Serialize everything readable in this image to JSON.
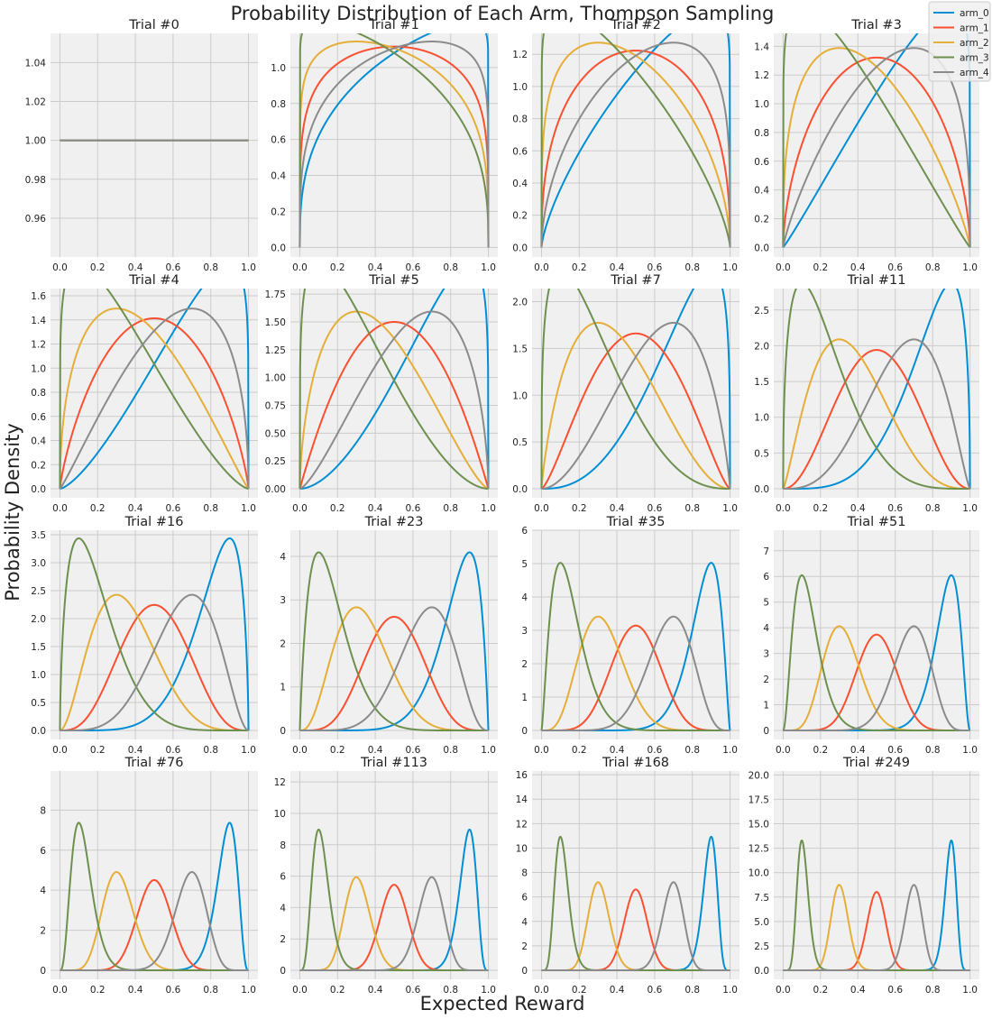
{
  "chart_data": {
    "type": "line",
    "title": "Probability Distribution of Each Arm, Thompson Sampling",
    "xlabel": "Expected Reward",
    "ylabel": "Probability Density",
    "grid": true,
    "legend_placement": "top-right",
    "xlim": [
      0,
      1
    ],
    "xticks": [
      "0.0",
      "0.2",
      "0.4",
      "0.6",
      "0.8",
      "1.0"
    ],
    "series_colors": [
      "#008fd5",
      "#fc4f30",
      "#e5ae38",
      "#6d904f",
      "#8b8b8b"
    ],
    "series": [
      {
        "name": "arm_0"
      },
      {
        "name": "arm_1"
      },
      {
        "name": "arm_2"
      },
      {
        "name": "arm_3"
      },
      {
        "name": "arm_4"
      }
    ],
    "panels": [
      {
        "title": "Trial #0",
        "ylim": [
          0.945,
          1.055
        ],
        "yticks": [
          "0.96",
          "0.98",
          "1.00",
          "1.02",
          "1.04"
        ],
        "params": [
          [
            1,
            1
          ],
          [
            1,
            1
          ],
          [
            1,
            1
          ],
          [
            1,
            1
          ],
          [
            1,
            1
          ]
        ]
      },
      {
        "title": "Trial #1",
        "ylim": [
          0,
          1.19
        ],
        "yticks": [
          "0.0",
          "0.2",
          "0.4",
          "0.6",
          "0.8",
          "1.0"
        ],
        "params": [
          [
            1.36,
            1.04
          ],
          [
            1.2,
            1.2
          ],
          [
            1.12,
            1.28
          ],
          [
            1.04,
            1.36
          ],
          [
            1.28,
            1.12
          ]
        ]
      },
      {
        "title": "Trial #2",
        "ylim": [
          0,
          1.33
        ],
        "yticks": [
          "0.0",
          "0.2",
          "0.4",
          "0.6",
          "0.8",
          "1.0",
          "1.2"
        ],
        "params": [
          [
            1.72,
            1.08
          ],
          [
            1.4,
            1.4
          ],
          [
            1.24,
            1.56
          ],
          [
            1.08,
            1.72
          ],
          [
            1.56,
            1.24
          ]
        ]
      },
      {
        "title": "Trial #3",
        "ylim": [
          0,
          1.49
        ],
        "yticks": [
          "0.0",
          "0.2",
          "0.4",
          "0.6",
          "0.8",
          "1.0",
          "1.2",
          "1.4"
        ],
        "params": [
          [
            2.08,
            1.12
          ],
          [
            1.6,
            1.6
          ],
          [
            1.36,
            1.84
          ],
          [
            1.12,
            2.08
          ],
          [
            1.84,
            1.36
          ]
        ]
      },
      {
        "title": "Trial #4",
        "ylim": [
          0,
          1.66
        ],
        "yticks": [
          "0.0",
          "0.2",
          "0.4",
          "0.6",
          "0.8",
          "1.0",
          "1.2",
          "1.4",
          "1.6"
        ],
        "params": [
          [
            2.44,
            1.16
          ],
          [
            1.8,
            1.8
          ],
          [
            1.48,
            2.12
          ],
          [
            1.16,
            2.44
          ],
          [
            2.12,
            1.48
          ]
        ]
      },
      {
        "title": "Trial #5",
        "ylim": [
          0,
          1.8
        ],
        "yticks": [
          "0.00",
          "0.25",
          "0.50",
          "0.75",
          "1.00",
          "1.25",
          "1.50",
          "1.75"
        ],
        "params": [
          [
            2.8,
            1.2
          ],
          [
            2.0,
            2.0
          ],
          [
            1.6,
            2.4
          ],
          [
            1.2,
            2.8
          ],
          [
            2.4,
            1.6
          ]
        ]
      },
      {
        "title": "Trial #7",
        "ylim": [
          0,
          2.14
        ],
        "yticks": [
          "0.0",
          "0.5",
          "1.0",
          "1.5",
          "2.0"
        ],
        "params": [
          [
            3.52,
            1.28
          ],
          [
            2.4,
            2.4
          ],
          [
            1.84,
            2.96
          ],
          [
            1.28,
            3.52
          ],
          [
            2.96,
            1.84
          ]
        ]
      },
      {
        "title": "Trial #11",
        "ylim": [
          0,
          2.8
        ],
        "yticks": [
          "0.0",
          "0.5",
          "1.0",
          "1.5",
          "2.0",
          "2.5"
        ],
        "params": [
          [
            4.96,
            1.44
          ],
          [
            3.2,
            3.2
          ],
          [
            2.32,
            4.08
          ],
          [
            1.44,
            4.96
          ],
          [
            4.08,
            2.32
          ]
        ]
      },
      {
        "title": "Trial #16",
        "ylim": [
          0,
          3.58
        ],
        "yticks": [
          "0.0",
          "0.5",
          "1.0",
          "1.5",
          "2.0",
          "2.5",
          "3.0",
          "3.5"
        ],
        "params": [
          [
            6.76,
            1.64
          ],
          [
            4.2,
            4.2
          ],
          [
            2.92,
            5.48
          ],
          [
            1.64,
            6.76
          ],
          [
            5.48,
            2.92
          ]
        ]
      },
      {
        "title": "Trial #23",
        "ylim": [
          0,
          4.6
        ],
        "yticks": [
          "0",
          "1",
          "2",
          "3",
          "4"
        ],
        "params": [
          [
            9.28,
            1.92
          ],
          [
            5.6,
            5.6
          ],
          [
            3.76,
            7.44
          ],
          [
            1.92,
            9.28
          ],
          [
            7.44,
            3.76
          ]
        ]
      },
      {
        "title": "Trial #35",
        "ylim": [
          0,
          6.0
        ],
        "yticks": [
          "0",
          "1",
          "2",
          "3",
          "4",
          "5",
          "6"
        ],
        "params": [
          [
            13.6,
            2.4
          ],
          [
            8.0,
            8.0
          ],
          [
            5.2,
            10.8
          ],
          [
            2.4,
            13.6
          ],
          [
            10.8,
            5.2
          ]
        ]
      },
      {
        "title": "Trial #51",
        "ylim": [
          0,
          7.8
        ],
        "yticks": [
          "0",
          "1",
          "2",
          "3",
          "4",
          "5",
          "6",
          "7"
        ],
        "params": [
          [
            19.36,
            3.04
          ],
          [
            11.2,
            11.2
          ],
          [
            7.12,
            15.28
          ],
          [
            3.04,
            19.36
          ],
          [
            15.28,
            7.12
          ]
        ]
      },
      {
        "title": "Trial #76",
        "ylim": [
          0,
          9.95
        ],
        "yticks": [
          "0",
          "2",
          "4",
          "6",
          "8"
        ],
        "params": [
          [
            28.36,
            4.04
          ],
          [
            16.2,
            16.2
          ],
          [
            10.12,
            22.28
          ],
          [
            4.04,
            28.36
          ],
          [
            22.28,
            10.12
          ]
        ]
      },
      {
        "title": "Trial #113",
        "ylim": [
          0,
          12.7
        ],
        "yticks": [
          "0",
          "2",
          "4",
          "6",
          "8",
          "10",
          "12"
        ],
        "params": [
          [
            41.68,
            5.52
          ],
          [
            23.6,
            23.6
          ],
          [
            14.56,
            32.64
          ],
          [
            5.52,
            41.68
          ],
          [
            32.64,
            14.56
          ]
        ]
      },
      {
        "title": "Trial #168",
        "ylim": [
          0,
          16.3
        ],
        "yticks": [
          "0",
          "2",
          "4",
          "6",
          "8",
          "10",
          "12",
          "14",
          "16"
        ],
        "params": [
          [
            61.48,
            7.72
          ],
          [
            34.6,
            34.6
          ],
          [
            21.16,
            48.04
          ],
          [
            7.72,
            61.48
          ],
          [
            48.04,
            21.16
          ]
        ]
      },
      {
        "title": "Trial #249",
        "ylim": [
          0,
          20.4
        ],
        "yticks": [
          "0.0",
          "2.5",
          "5.0",
          "7.5",
          "10.0",
          "12.5",
          "15.0",
          "17.5",
          "20.0"
        ],
        "params": [
          [
            90.64,
            10.96
          ],
          [
            50.8,
            50.8
          ],
          [
            30.88,
            70.72
          ],
          [
            10.96,
            90.64
          ],
          [
            70.72,
            30.88
          ]
        ]
      }
    ]
  }
}
